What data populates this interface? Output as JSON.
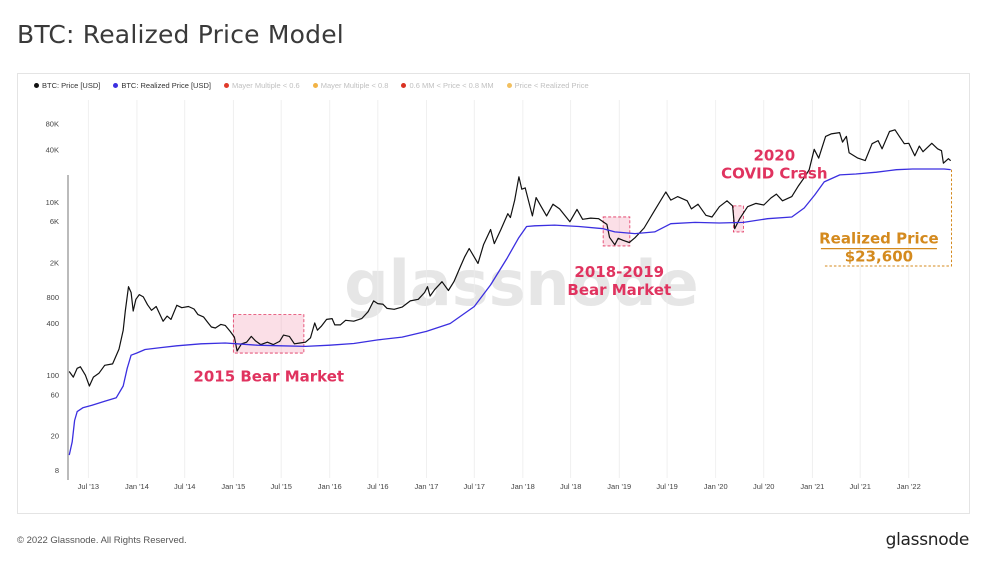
{
  "page": {
    "title": "BTC: Realized Price Model"
  },
  "footer": {
    "copyright": "© 2022 Glassnode. All Rights Reserved.",
    "logo": "glassnode"
  },
  "watermark": "glassnode",
  "legend": [
    {
      "label": "BTC: Price [USD]",
      "color": "#111111",
      "active": true
    },
    {
      "label": "BTC: Realized Price [USD]",
      "color": "#3b2fe0",
      "active": true
    },
    {
      "label": "Mayer Multiple < 0.6",
      "color": "#e03a2a",
      "active": false
    },
    {
      "label": "Mayer Multiple < 0.8",
      "color": "#f2b345",
      "active": false
    },
    {
      "label": "0.6 MM < Price < 0.8 MM",
      "color": "#d93222",
      "active": false
    },
    {
      "label": "Price < Realized Price",
      "color": "#f2c060",
      "active": false
    }
  ],
  "chart_data": {
    "type": "line",
    "y_scale": "log",
    "yticks": [
      8,
      20,
      60,
      100,
      400,
      800,
      2000,
      6000,
      10000,
      40000,
      80000
    ],
    "ytick_labels": [
      "8",
      "20",
      "60",
      "100",
      "400",
      "800",
      "2K",
      "6K",
      "10K",
      "40K",
      "80K"
    ],
    "xticks": [
      "2013-07-01",
      "2014-01-01",
      "2014-07-01",
      "2015-01-01",
      "2015-07-01",
      "2016-01-01",
      "2016-07-01",
      "2017-01-01",
      "2017-07-01",
      "2018-01-01",
      "2018-07-01",
      "2019-01-01",
      "2019-07-01",
      "2020-01-01",
      "2020-07-01",
      "2021-01-01",
      "2021-07-01",
      "2022-01-01"
    ],
    "xtick_labels": [
      "Jul '13",
      "Jan '14",
      "Jul '14",
      "Jan '15",
      "Jul '15",
      "Jan '16",
      "Jul '16",
      "Jan '17",
      "Jul '17",
      "Jan '18",
      "Jul '18",
      "Jan '19",
      "Jul '19",
      "Jan '20",
      "Jul '20",
      "Jan '21",
      "Jul '21",
      "Jan '22"
    ],
    "xlim": [
      "2013-04-15",
      "2022-06-25"
    ],
    "ylim": [
      6.5,
      150000
    ],
    "series": [
      {
        "name": "BTC: Price [USD]",
        "color": "#111111",
        "points": [
          [
            "2013-04-20",
            110
          ],
          [
            "2013-05-05",
            95
          ],
          [
            "2013-05-20",
            120
          ],
          [
            "2013-06-01",
            125
          ],
          [
            "2013-06-20",
            100
          ],
          [
            "2013-07-05",
            75
          ],
          [
            "2013-07-20",
            95
          ],
          [
            "2013-08-10",
            105
          ],
          [
            "2013-09-01",
            130
          ],
          [
            "2013-10-01",
            135
          ],
          [
            "2013-10-25",
            200
          ],
          [
            "2013-11-10",
            330
          ],
          [
            "2013-11-18",
            550
          ],
          [
            "2013-11-30",
            1050
          ],
          [
            "2013-12-10",
            900
          ],
          [
            "2013-12-18",
            550
          ],
          [
            "2013-12-28",
            750
          ],
          [
            "2014-01-10",
            850
          ],
          [
            "2014-01-25",
            800
          ],
          [
            "2014-02-10",
            650
          ],
          [
            "2014-02-25",
            560
          ],
          [
            "2014-03-15",
            620
          ],
          [
            "2014-04-10",
            420
          ],
          [
            "2014-04-25",
            480
          ],
          [
            "2014-05-10",
            440
          ],
          [
            "2014-06-01",
            640
          ],
          [
            "2014-06-20",
            600
          ],
          [
            "2014-07-15",
            620
          ],
          [
            "2014-08-05",
            580
          ],
          [
            "2014-08-20",
            500
          ],
          [
            "2014-09-10",
            470
          ],
          [
            "2014-09-25",
            410
          ],
          [
            "2014-10-10",
            360
          ],
          [
            "2014-10-25",
            350
          ],
          [
            "2014-11-15",
            385
          ],
          [
            "2014-12-01",
            375
          ],
          [
            "2014-12-20",
            320
          ],
          [
            "2015-01-05",
            275
          ],
          [
            "2015-01-15",
            190
          ],
          [
            "2015-02-01",
            230
          ],
          [
            "2015-02-20",
            240
          ],
          [
            "2015-03-10",
            280
          ],
          [
            "2015-03-25",
            250
          ],
          [
            "2015-04-15",
            225
          ],
          [
            "2015-05-10",
            240
          ],
          [
            "2015-06-01",
            225
          ],
          [
            "2015-06-25",
            245
          ],
          [
            "2015-07-10",
            290
          ],
          [
            "2015-08-01",
            280
          ],
          [
            "2015-08-20",
            230
          ],
          [
            "2015-09-10",
            235
          ],
          [
            "2015-10-01",
            240
          ],
          [
            "2015-10-20",
            270
          ],
          [
            "2015-11-05",
            400
          ],
          [
            "2015-11-15",
            330
          ],
          [
            "2015-12-01",
            370
          ],
          [
            "2015-12-20",
            440
          ],
          [
            "2016-01-10",
            450
          ],
          [
            "2016-01-20",
            380
          ],
          [
            "2016-02-10",
            380
          ],
          [
            "2016-03-01",
            430
          ],
          [
            "2016-04-01",
            420
          ],
          [
            "2016-05-01",
            450
          ],
          [
            "2016-05-25",
            540
          ],
          [
            "2016-06-15",
            720
          ],
          [
            "2016-07-01",
            670
          ],
          [
            "2016-07-20",
            660
          ],
          [
            "2016-08-05",
            590
          ],
          [
            "2016-09-01",
            575
          ],
          [
            "2016-10-01",
            610
          ],
          [
            "2016-11-01",
            720
          ],
          [
            "2016-12-01",
            750
          ],
          [
            "2016-12-25",
            900
          ],
          [
            "2017-01-05",
            1050
          ],
          [
            "2017-01-15",
            820
          ],
          [
            "2017-02-01",
            970
          ],
          [
            "2017-03-01",
            1200
          ],
          [
            "2017-03-25",
            950
          ],
          [
            "2017-04-15",
            1200
          ],
          [
            "2017-05-10",
            1800
          ],
          [
            "2017-05-25",
            2300
          ],
          [
            "2017-06-12",
            2900
          ],
          [
            "2017-07-15",
            1950
          ],
          [
            "2017-08-05",
            3200
          ],
          [
            "2017-09-01",
            4800
          ],
          [
            "2017-09-15",
            3300
          ],
          [
            "2017-10-10",
            4800
          ],
          [
            "2017-11-05",
            7300
          ],
          [
            "2017-11-15",
            6600
          ],
          [
            "2017-12-01",
            10500
          ],
          [
            "2017-12-17",
            19500
          ],
          [
            "2017-12-28",
            14000
          ],
          [
            "2018-01-10",
            14500
          ],
          [
            "2018-02-06",
            6900
          ],
          [
            "2018-02-20",
            11200
          ],
          [
            "2018-03-10",
            9000
          ],
          [
            "2018-04-01",
            6900
          ],
          [
            "2018-04-25",
            9400
          ],
          [
            "2018-05-20",
            8300
          ],
          [
            "2018-06-28",
            5900
          ],
          [
            "2018-07-25",
            8200
          ],
          [
            "2018-08-15",
            6300
          ],
          [
            "2018-09-15",
            6500
          ],
          [
            "2018-10-15",
            6400
          ],
          [
            "2018-11-15",
            5500
          ],
          [
            "2018-11-25",
            3900
          ],
          [
            "2018-12-15",
            3200
          ],
          [
            "2018-12-28",
            3800
          ],
          [
            "2019-01-15",
            3600
          ],
          [
            "2019-02-08",
            3400
          ],
          [
            "2019-03-01",
            3850
          ],
          [
            "2019-04-05",
            5000
          ],
          [
            "2019-05-15",
            8000
          ],
          [
            "2019-06-26",
            13000
          ],
          [
            "2019-07-15",
            10500
          ],
          [
            "2019-08-10",
            11500
          ],
          [
            "2019-09-15",
            10300
          ],
          [
            "2019-10-01",
            8300
          ],
          [
            "2019-10-26",
            9400
          ],
          [
            "2019-11-25",
            7000
          ],
          [
            "2019-12-18",
            6700
          ],
          [
            "2020-01-15",
            8800
          ],
          [
            "2020-02-13",
            10300
          ],
          [
            "2020-03-05",
            9000
          ],
          [
            "2020-03-13",
            4900
          ],
          [
            "2020-04-01",
            6400
          ],
          [
            "2020-05-01",
            8800
          ],
          [
            "2020-06-01",
            9600
          ],
          [
            "2020-07-01",
            9200
          ],
          [
            "2020-07-28",
            11100
          ],
          [
            "2020-08-18",
            12300
          ],
          [
            "2020-09-10",
            10300
          ],
          [
            "2020-10-15",
            11500
          ],
          [
            "2020-11-10",
            15400
          ],
          [
            "2020-12-01",
            19000
          ],
          [
            "2020-12-20",
            23500
          ],
          [
            "2021-01-08",
            40500
          ],
          [
            "2021-01-25",
            32000
          ],
          [
            "2021-02-20",
            57000
          ],
          [
            "2021-03-13",
            61000
          ],
          [
            "2021-04-14",
            63000
          ],
          [
            "2021-04-25",
            49000
          ],
          [
            "2021-05-10",
            57000
          ],
          [
            "2021-05-20",
            37000
          ],
          [
            "2021-06-22",
            32000
          ],
          [
            "2021-07-20",
            30000
          ],
          [
            "2021-08-15",
            47000
          ],
          [
            "2021-09-07",
            51000
          ],
          [
            "2021-09-22",
            41000
          ],
          [
            "2021-10-20",
            65000
          ],
          [
            "2021-11-10",
            68000
          ],
          [
            "2021-11-28",
            56000
          ],
          [
            "2021-12-15",
            47000
          ],
          [
            "2022-01-01",
            47500
          ],
          [
            "2022-01-24",
            34000
          ],
          [
            "2022-02-10",
            44000
          ],
          [
            "2022-02-24",
            38000
          ],
          [
            "2022-03-29",
            47500
          ],
          [
            "2022-04-20",
            41000
          ],
          [
            "2022-05-05",
            39000
          ],
          [
            "2022-05-12",
            28000
          ],
          [
            "2022-05-31",
            31500
          ],
          [
            "2022-06-08",
            30000
          ]
        ]
      },
      {
        "name": "BTC: Realized Price [USD]",
        "color": "#3b2fe0",
        "points": [
          [
            "2013-04-20",
            12
          ],
          [
            "2013-05-01",
            17
          ],
          [
            "2013-05-10",
            30
          ],
          [
            "2013-05-20",
            38
          ],
          [
            "2013-06-10",
            42
          ],
          [
            "2013-07-15",
            45
          ],
          [
            "2013-09-01",
            50
          ],
          [
            "2013-10-15",
            55
          ],
          [
            "2013-11-10",
            75
          ],
          [
            "2013-11-25",
            120
          ],
          [
            "2013-12-10",
            170
          ],
          [
            "2014-01-01",
            180
          ],
          [
            "2014-02-01",
            198
          ],
          [
            "2014-04-01",
            208
          ],
          [
            "2014-06-01",
            218
          ],
          [
            "2014-09-01",
            230
          ],
          [
            "2014-12-01",
            235
          ],
          [
            "2015-01-15",
            230
          ],
          [
            "2015-04-01",
            222
          ],
          [
            "2015-07-01",
            218
          ],
          [
            "2015-10-01",
            215
          ],
          [
            "2016-01-01",
            222
          ],
          [
            "2016-04-01",
            232
          ],
          [
            "2016-07-01",
            255
          ],
          [
            "2016-10-01",
            275
          ],
          [
            "2017-01-01",
            320
          ],
          [
            "2017-04-01",
            395
          ],
          [
            "2017-07-01",
            620
          ],
          [
            "2017-09-01",
            1100
          ],
          [
            "2017-11-01",
            2200
          ],
          [
            "2017-12-15",
            3800
          ],
          [
            "2018-01-15",
            5200
          ],
          [
            "2018-02-15",
            5300
          ],
          [
            "2018-05-01",
            5400
          ],
          [
            "2018-08-01",
            5200
          ],
          [
            "2018-11-01",
            4900
          ],
          [
            "2018-12-15",
            4500
          ],
          [
            "2019-03-01",
            4300
          ],
          [
            "2019-05-15",
            4500
          ],
          [
            "2019-07-15",
            5600
          ],
          [
            "2019-10-15",
            5800
          ],
          [
            "2020-01-15",
            5700
          ],
          [
            "2020-04-15",
            5800
          ],
          [
            "2020-07-15",
            6400
          ],
          [
            "2020-10-15",
            6700
          ],
          [
            "2020-12-01",
            8500
          ],
          [
            "2021-01-10",
            12000
          ],
          [
            "2021-02-15",
            17000
          ],
          [
            "2021-04-15",
            20500
          ],
          [
            "2021-06-15",
            21000
          ],
          [
            "2021-09-01",
            22000
          ],
          [
            "2021-11-15",
            23500
          ],
          [
            "2022-01-15",
            24000
          ],
          [
            "2022-03-15",
            24000
          ],
          [
            "2022-05-15",
            24000
          ],
          [
            "2022-06-08",
            23600
          ]
        ]
      }
    ],
    "annotations": [
      {
        "label": "2015 Bear Market",
        "color": "#e0335f",
        "span": [
          "2015-01-01",
          "2015-09-25"
        ],
        "yspan": [
          180,
          500
        ],
        "text_at": [
          "2015-05-15",
          85
        ]
      },
      {
        "lines": [
          "2018-2019",
          "Bear Market"
        ],
        "color": "#e0335f",
        "span": [
          "2018-11-01",
          "2019-02-10"
        ],
        "yspan": [
          3100,
          6700
        ],
        "text_at": [
          "2019-01-01",
          1350
        ]
      },
      {
        "lines": [
          "2020",
          "COVID Crash"
        ],
        "color": "#e0335f",
        "span": [
          "2020-03-08",
          "2020-04-15"
        ],
        "yspan": [
          4500,
          9000
        ],
        "text_at": [
          "2020-08-10",
          30000
        ]
      },
      {
        "lines": [
          "Realized Price",
          "$23,600"
        ],
        "color": "#d48a1e",
        "text_at": [
          "2021-09-10",
          3300
        ]
      }
    ]
  }
}
